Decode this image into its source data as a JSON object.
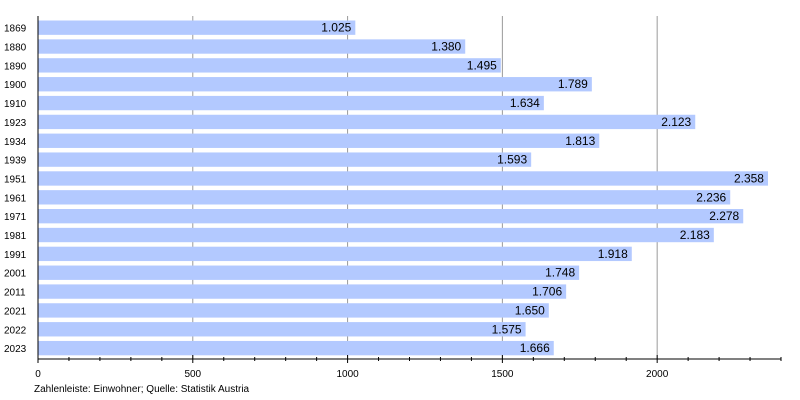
{
  "chart_data": {
    "type": "bar",
    "orientation": "horizontal",
    "categories": [
      "1869",
      "1880",
      "1890",
      "1900",
      "1910",
      "1923",
      "1934",
      "1939",
      "1951",
      "1961",
      "1971",
      "1981",
      "1991",
      "2001",
      "2011",
      "2021",
      "2022",
      "2023"
    ],
    "values": [
      1025,
      1380,
      1495,
      1789,
      1634,
      2123,
      1813,
      1593,
      2358,
      2236,
      2278,
      2183,
      1918,
      1748,
      1706,
      1650,
      1575,
      1666
    ],
    "value_labels": [
      "1.025",
      "1.380",
      "1.495",
      "1.789",
      "1.634",
      "2.123",
      "1.813",
      "1.593",
      "2.358",
      "2.236",
      "2.278",
      "2.183",
      "1.918",
      "1.748",
      "1.706",
      "1.650",
      "1.575",
      "1.666"
    ],
    "x_ticks": [
      "0",
      "500",
      "1000",
      "1500",
      "2000"
    ],
    "xlim": [
      0,
      2400
    ],
    "grid": true,
    "legend": "none",
    "bar_color": "#b3c9ff",
    "note": "Zahlenleiste: Einwohner; Quelle: Statistik Austria"
  }
}
